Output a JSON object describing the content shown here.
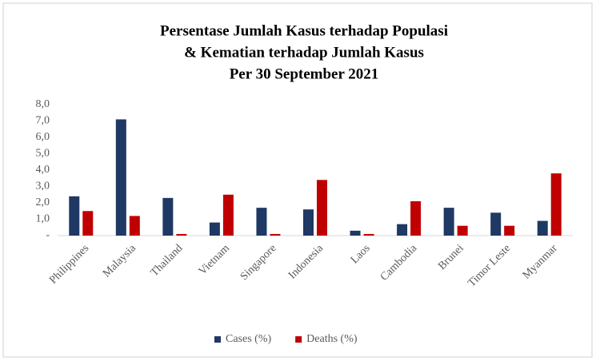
{
  "chart_data": {
    "type": "bar",
    "title": [
      "Persentase Jumlah Kasus terhadap Populasi",
      "& Kematian terhadap Jumlah Kasus",
      "Per 30 September 2021"
    ],
    "categories": [
      "Philippines",
      "Malaysia",
      "Thailand",
      "Vietnam",
      "Singapore",
      "Indonesia",
      "Laos",
      "Cambodia",
      "Brunei",
      "Timor Leste",
      "Myanmar"
    ],
    "series": [
      {
        "name": "Cases (%)",
        "color": "#1f3864",
        "values": [
          2.4,
          7.1,
          2.3,
          0.8,
          1.7,
          1.6,
          0.3,
          0.7,
          1.7,
          1.4,
          0.9
        ]
      },
      {
        "name": "Deaths (%)",
        "color": "#c00000",
        "values": [
          1.5,
          1.2,
          0.1,
          2.5,
          0.1,
          3.4,
          0.1,
          2.1,
          0.6,
          0.6,
          3.8
        ]
      }
    ],
    "ylim": [
      0,
      8
    ],
    "yticks": [
      {
        "value": 0,
        "label": "-"
      },
      {
        "value": 1,
        "label": "1,0"
      },
      {
        "value": 2,
        "label": "2,0"
      },
      {
        "value": 3,
        "label": "3,0"
      },
      {
        "value": 4,
        "label": "4,0"
      },
      {
        "value": 5,
        "label": "5,0"
      },
      {
        "value": 6,
        "label": "6,0"
      },
      {
        "value": 7,
        "label": "7,0"
      },
      {
        "value": 8,
        "label": "8,0"
      }
    ],
    "grid": false,
    "legend": "bottom"
  }
}
